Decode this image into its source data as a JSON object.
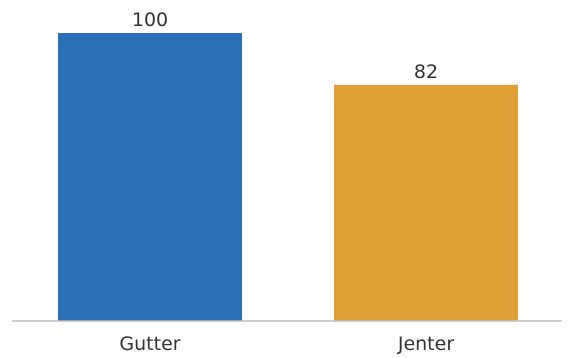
{
  "chart_data": {
    "type": "bar",
    "categories": [
      "Gutter",
      "Jenter"
    ],
    "values": [
      100,
      82
    ],
    "value_labels": [
      "100",
      "82"
    ],
    "ylim": [
      0,
      100
    ],
    "grid": false,
    "colors": [
      "#2b6fb6",
      "#e0a038"
    ],
    "axis_color": "#bfbfbf"
  }
}
